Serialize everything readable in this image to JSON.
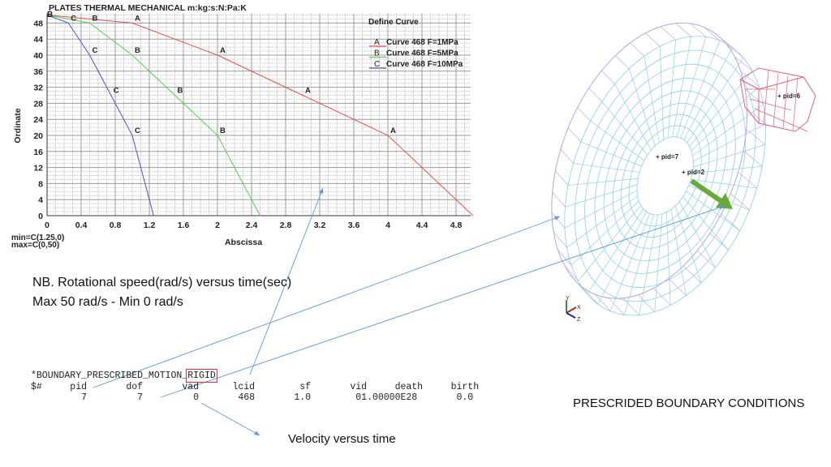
{
  "chart_data": {
    "type": "line",
    "title": "PLATES THERMAL MECHANICAL m:kg:s:N:Pa:K",
    "xlabel": "Abscissa",
    "ylabel": "Ordinate",
    "xlim": [
      0,
      5
    ],
    "ylim": [
      0,
      50
    ],
    "xticks": [
      "0",
      "0.4",
      "0.8",
      "1.2",
      "1.6",
      "2",
      "2.4",
      "2.8",
      "3.2",
      "3.6",
      "4",
      "4.4",
      "4.8"
    ],
    "yticks": [
      "0",
      "4",
      "8",
      "12",
      "16",
      "20",
      "24",
      "28",
      "32",
      "36",
      "40",
      "44",
      "48"
    ],
    "grid": true,
    "legend_title": "Define Curve",
    "legend_placement": "top-right",
    "series": [
      {
        "marker": "A",
        "name": "Curve 468 F=1MPa",
        "color": "#e05050",
        "x": [
          0,
          1,
          2,
          3,
          4,
          5
        ],
        "y": [
          50,
          48,
          40,
          30,
          20,
          0
        ]
      },
      {
        "marker": "B",
        "name": "Curve 468 F=5MPa",
        "color": "#50d050",
        "x": [
          0,
          0.5,
          1,
          1.5,
          2,
          2.5
        ],
        "y": [
          50,
          48,
          40,
          30,
          20,
          0
        ]
      },
      {
        "marker": "C",
        "name": "Curve 468 F=10MPa",
        "color": "#5050d0",
        "x": [
          0,
          0.25,
          0.5,
          0.75,
          1,
          1.25
        ],
        "y": [
          50,
          48,
          40,
          30,
          20,
          0
        ]
      }
    ],
    "annotations": [
      "min=C(1.25,0)",
      "max=C(0,50)"
    ]
  },
  "notes": {
    "line1": "NB. Rotational speed(rad/s) versus time(sec)",
    "line2": "Max 50 rad/s - Min 0 rad/s"
  },
  "keyword": {
    "prefix": "*BOUNDARY_PRESCRIBED_MOTION_",
    "suffix": "RIGID",
    "header": "$#     pid       dof       vad      lcid        sf       vid     death     birth",
    "values": "         7         7         0       468       1.0        01.00000E28       0.0"
  },
  "model": {
    "labels": [
      "pid=7",
      "pid=2",
      "pid=6"
    ],
    "axes": [
      "Y",
      "X",
      "Z"
    ],
    "mesh_color": "#8ccfe6",
    "block_color": "#e0607a",
    "arrow_color": "#6aa83a"
  },
  "captions": {
    "boundary": "PRESCRIDED BOUNDARY CONDITIONS",
    "velocity": "Velocity versus time"
  }
}
